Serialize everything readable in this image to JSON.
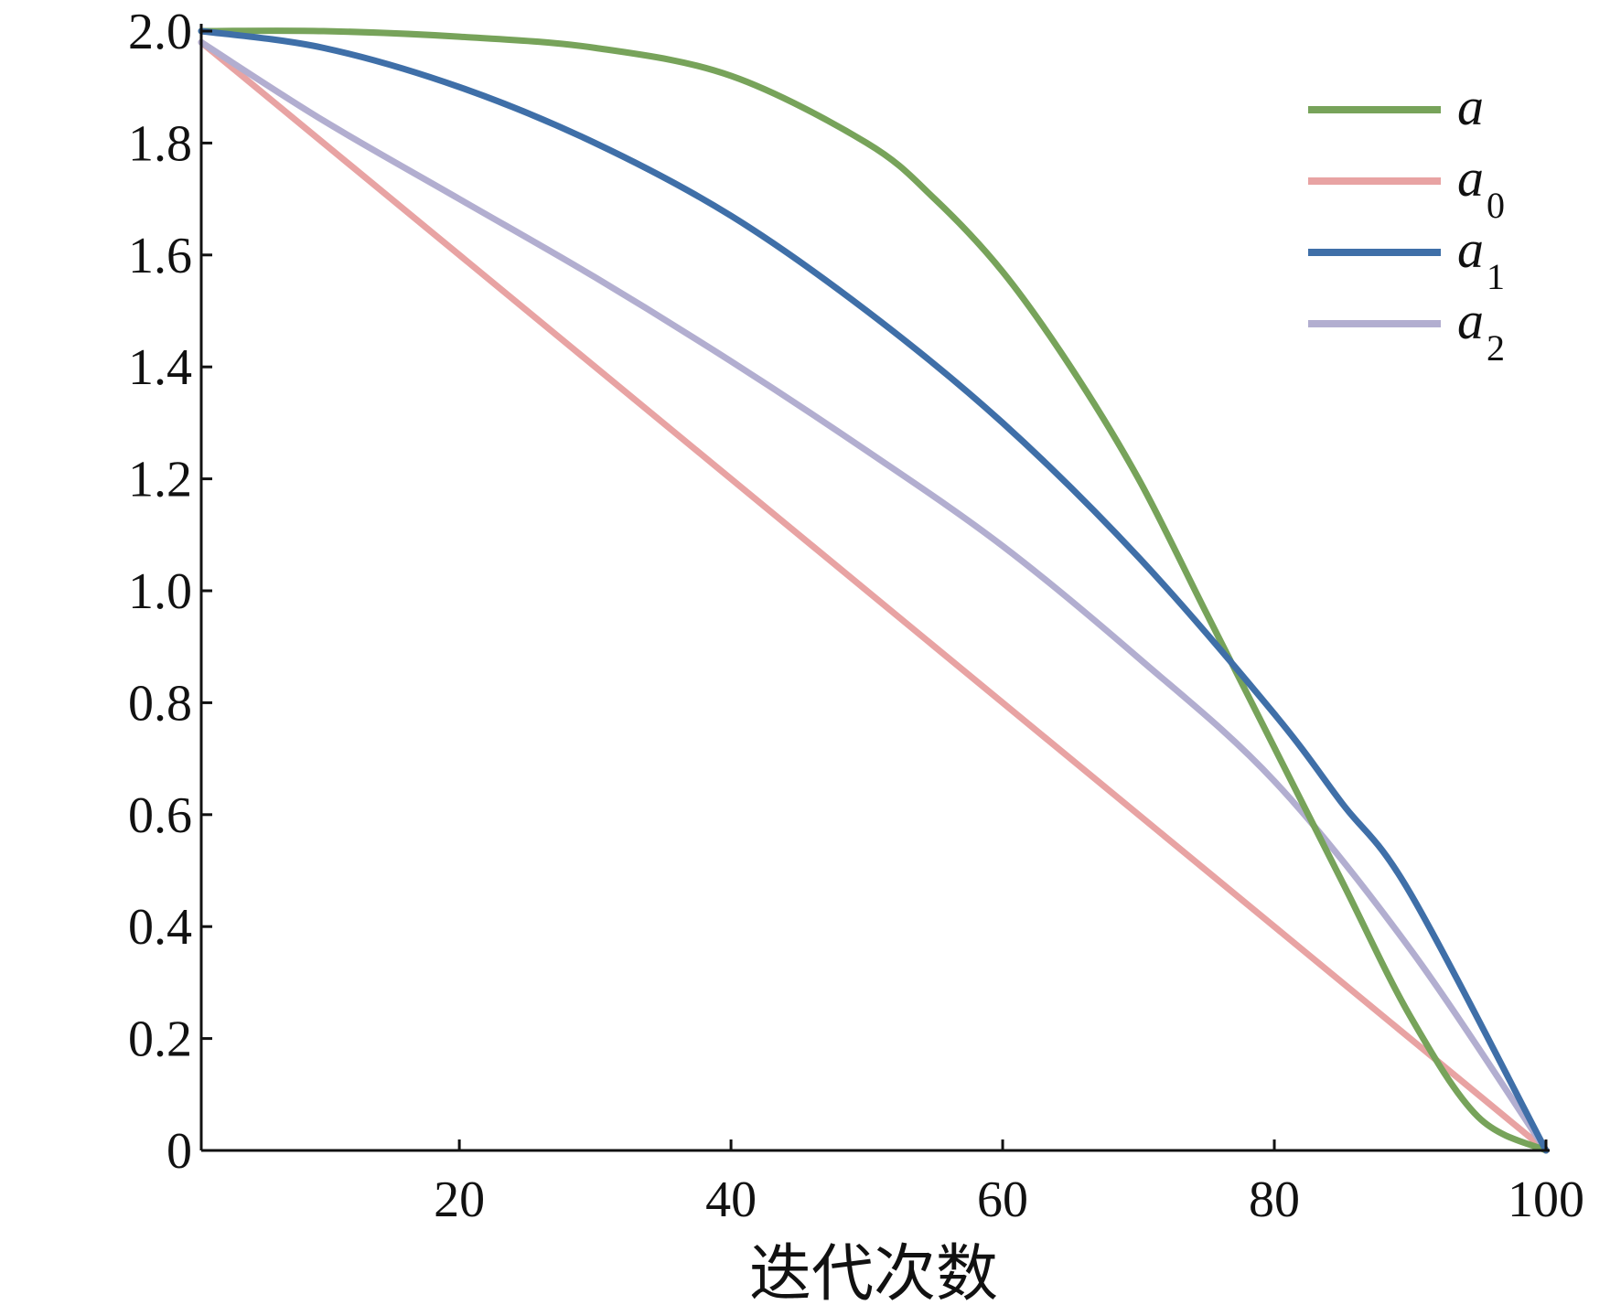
{
  "chart_data": {
    "type": "line",
    "title": "",
    "xlabel": "迭代次数",
    "ylabel": "",
    "xlim": [
      1,
      100
    ],
    "ylim": [
      0,
      2.0
    ],
    "xticks": [
      20,
      40,
      60,
      80,
      100
    ],
    "yticks": [
      0,
      0.2,
      0.4,
      0.6,
      0.8,
      1.0,
      1.2,
      1.4,
      1.6,
      1.8,
      2.0
    ],
    "ytick_labels": [
      "0",
      "0.2",
      "0.4",
      "0.6",
      "0.8",
      "1.0",
      "1.2",
      "1.4",
      "1.6",
      "1.8",
      "2.0"
    ],
    "xtick_labels": [
      "20",
      "40",
      "60",
      "80",
      "100"
    ],
    "grid": false,
    "legend_position": "top-right",
    "series": [
      {
        "name": "a",
        "sub": "",
        "color": "#77a35a",
        "x": [
          1,
          10,
          20,
          30,
          40,
          50,
          55,
          60,
          65,
          70,
          75,
          80,
          85,
          90,
          95,
          100
        ],
        "y": [
          2.0,
          2.0,
          1.99,
          1.97,
          1.92,
          1.8,
          1.7,
          1.57,
          1.4,
          1.2,
          0.96,
          0.72,
          0.48,
          0.24,
          0.06,
          0.0
        ]
      },
      {
        "name": "a",
        "sub": "0",
        "color": "#e8a3a3",
        "x": [
          1,
          100
        ],
        "y": [
          1.98,
          0.0
        ]
      },
      {
        "name": "a",
        "sub": "1",
        "color": "#3f6fa8",
        "x": [
          1,
          10,
          20,
          30,
          40,
          50,
          60,
          70,
          80,
          85,
          90,
          100
        ],
        "y": [
          2.0,
          1.97,
          1.9,
          1.8,
          1.67,
          1.5,
          1.3,
          1.06,
          0.78,
          0.62,
          0.46,
          0.0
        ]
      },
      {
        "name": "a",
        "sub": "2",
        "color": "#b2aed0",
        "x": [
          1,
          10,
          20,
          30,
          40,
          50,
          60,
          70,
          80,
          90,
          100
        ],
        "y": [
          1.98,
          1.84,
          1.7,
          1.56,
          1.41,
          1.25,
          1.08,
          0.88,
          0.66,
          0.36,
          0.0
        ]
      }
    ]
  }
}
